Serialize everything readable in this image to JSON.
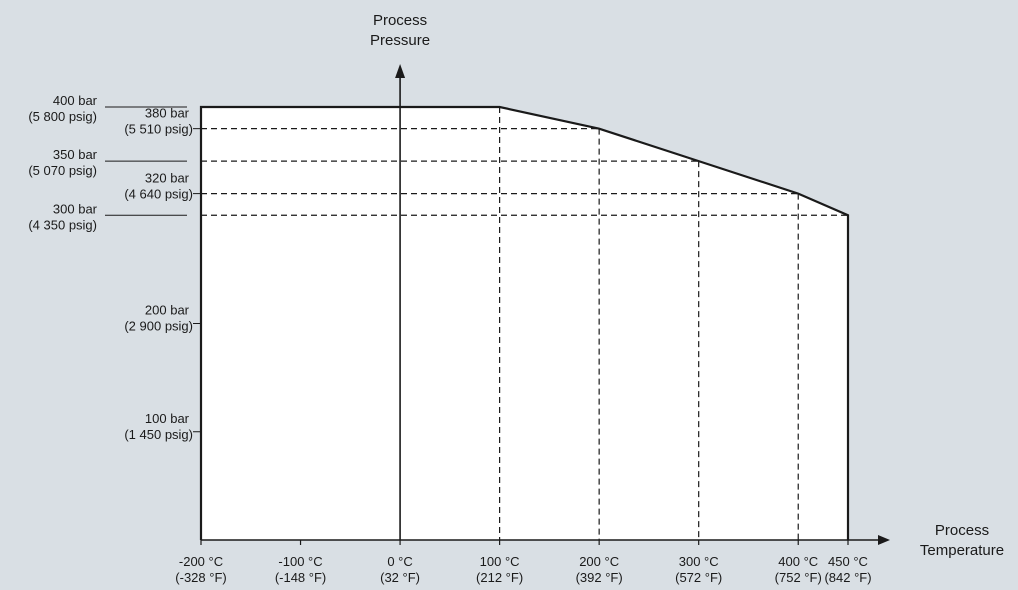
{
  "chart_data": {
    "type": "area",
    "title": "",
    "ylabel": [
      "Process",
      "Pressure"
    ],
    "xlabel": [
      "Process",
      "Temperature"
    ],
    "x_ticks": [
      {
        "value": -200,
        "label": "-200 °C",
        "sub": "(-328 °F)"
      },
      {
        "value": -100,
        "label": "-100 °C",
        "sub": "(-148 °F)"
      },
      {
        "value": 0,
        "label": "0 °C",
        "sub": "(32 °F)"
      },
      {
        "value": 100,
        "label": "100 °C",
        "sub": "(212 °F)"
      },
      {
        "value": 200,
        "label": "200 °C",
        "sub": "(392 °F)"
      },
      {
        "value": 300,
        "label": "300 °C",
        "sub": "(572 °F)"
      },
      {
        "value": 400,
        "label": "400 °C",
        "sub": "(752 °F)"
      },
      {
        "value": 450,
        "label": "450 °C",
        "sub": "(842 °F)"
      }
    ],
    "y_ticks": [
      {
        "value": 400,
        "label": "400 bar",
        "sub": "(5 800 psig)",
        "style": "outer"
      },
      {
        "value": 380,
        "label": "380 bar",
        "sub": "(5 510 psig)",
        "style": "inner"
      },
      {
        "value": 350,
        "label": "350 bar",
        "sub": "(5 070 psig)",
        "style": "outer"
      },
      {
        "value": 320,
        "label": "320 bar",
        "sub": "(4 640 psig)",
        "style": "inner"
      },
      {
        "value": 300,
        "label": "300 bar",
        "sub": "(4 350 psig)",
        "style": "outer"
      },
      {
        "value": 200,
        "label": "200 bar",
        "sub": "(2 900 psig)",
        "style": "plain"
      },
      {
        "value": 100,
        "label": "100 bar",
        "sub": "(1 450 psig)",
        "style": "plain"
      }
    ],
    "series": [
      {
        "x": [
          -200,
          100,
          200,
          300,
          400,
          450
        ],
        "y": [
          400,
          400,
          380,
          350,
          320,
          300
        ]
      }
    ],
    "xlim": [
      -200,
      450
    ],
    "ylim": [
      0,
      400
    ],
    "grid": false,
    "colors": {
      "background": "#d9dfe4",
      "fill": "#ffffff",
      "line": "#1a1a1a"
    }
  }
}
